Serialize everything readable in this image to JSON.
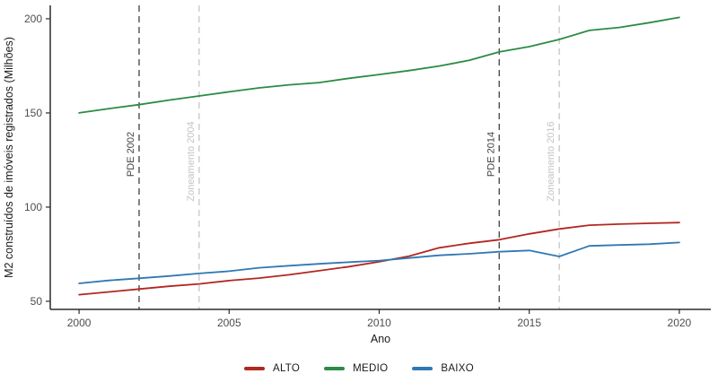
{
  "figure": {
    "background": "#ffffff",
    "axis_line_color": "#2b2b2b",
    "tick_label_color": "#4d4d4d",
    "title_color": "#1a1a1a"
  },
  "chart_data": {
    "type": "line",
    "title": "",
    "xlabel": "Ano",
    "ylabel": "M2 construídos de imóveis registrados (Milhões)",
    "xlim": [
      1999.04,
      2021.05
    ],
    "ylim": [
      45.7,
      207.1
    ],
    "xticks": [
      2000,
      2005,
      2010,
      2015,
      2020
    ],
    "yticks": [
      50,
      100,
      150,
      200
    ],
    "grid": false,
    "legend_position": "bottom",
    "x": [
      2000,
      2001,
      2002,
      2003,
      2004,
      2005,
      2006,
      2007,
      2008,
      2009,
      2010,
      2011,
      2012,
      2013,
      2014,
      2015,
      2016,
      2017,
      2018,
      2019,
      2020
    ],
    "series": [
      {
        "name": "ALTO",
        "color": "#B22720",
        "values": [
          53.5,
          55,
          56.5,
          58,
          59.2,
          61,
          62.3,
          64.1,
          66.2,
          68.4,
          71,
          74,
          78.4,
          80.8,
          82.7,
          85.8,
          88.4,
          90.4,
          91,
          91.4,
          91.8
        ]
      },
      {
        "name": "MEDIO",
        "color": "#2C8B44",
        "values": [
          150,
          152.3,
          154.4,
          156.8,
          159,
          161.2,
          163.3,
          164.9,
          166.1,
          168.4,
          170.4,
          172.5,
          174.9,
          177.9,
          182.4,
          185.2,
          189,
          193.8,
          195.4,
          197.9,
          200.7
        ]
      },
      {
        "name": "BAIXO",
        "color": "#3078B4",
        "values": [
          59.5,
          61.1,
          62.2,
          63.4,
          64.8,
          66,
          67.8,
          68.9,
          69.9,
          70.8,
          71.6,
          73,
          74.4,
          75.2,
          76.3,
          77,
          73.8,
          79.4,
          79.9,
          80.3,
          81.2
        ]
      }
    ],
    "vlines": [
      {
        "x": 2002,
        "label": "PDE 2002",
        "color": "#4D4D4D",
        "label_color": "#404040",
        "label_center_y": 172
      },
      {
        "x": 2004,
        "label": "Zoneamento 2004",
        "color": "#C9C9C9",
        "label_color": "#C4C4C4",
        "label_center_y": 180
      },
      {
        "x": 2014,
        "label": "PDE 2014",
        "color": "#4D4D4D",
        "label_color": "#404040",
        "label_center_y": 172
      },
      {
        "x": 2016,
        "label": "Zoneamento 2016",
        "color": "#C9C9C9",
        "label_color": "#C4C4C4",
        "label_center_y": 180
      }
    ],
    "legend": [
      "ALTO",
      "MEDIO",
      "BAIXO"
    ]
  }
}
